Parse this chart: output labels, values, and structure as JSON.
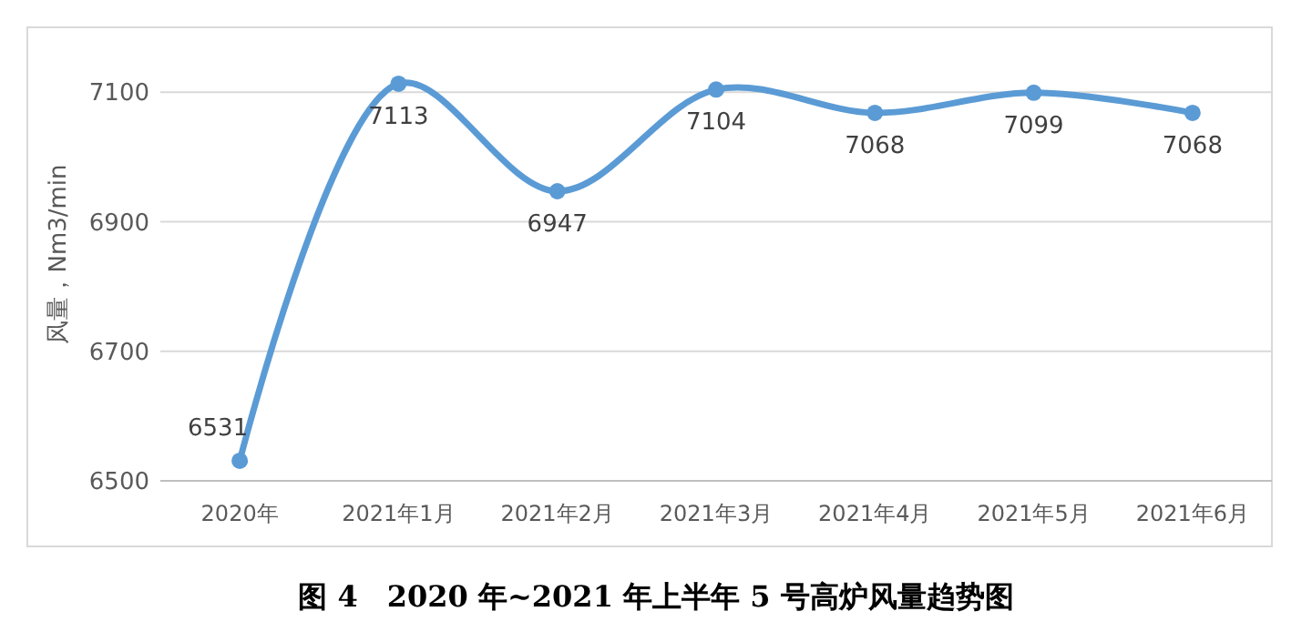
{
  "chart_data": {
    "type": "line",
    "title": "图 4　2020 年~2021 年上半年 5 号高炉风量趋势图",
    "ylabel": "风量，Nm3/min",
    "categories": [
      "2020年",
      "2021年1月",
      "2021年2月",
      "2021年3月",
      "2021年4月",
      "2021年5月",
      "2021年6月"
    ],
    "series": [
      {
        "color": "#5b9bd5",
        "values": [
          6531,
          7113,
          6947,
          7104,
          7068,
          7099,
          7068
        ]
      }
    ],
    "ylim": [
      6500,
      7200
    ],
    "yticks": [
      6500,
      6700,
      6900,
      7100
    ],
    "grid": "y",
    "marker": "circle",
    "line_style": "solid",
    "data_labels": true
  }
}
